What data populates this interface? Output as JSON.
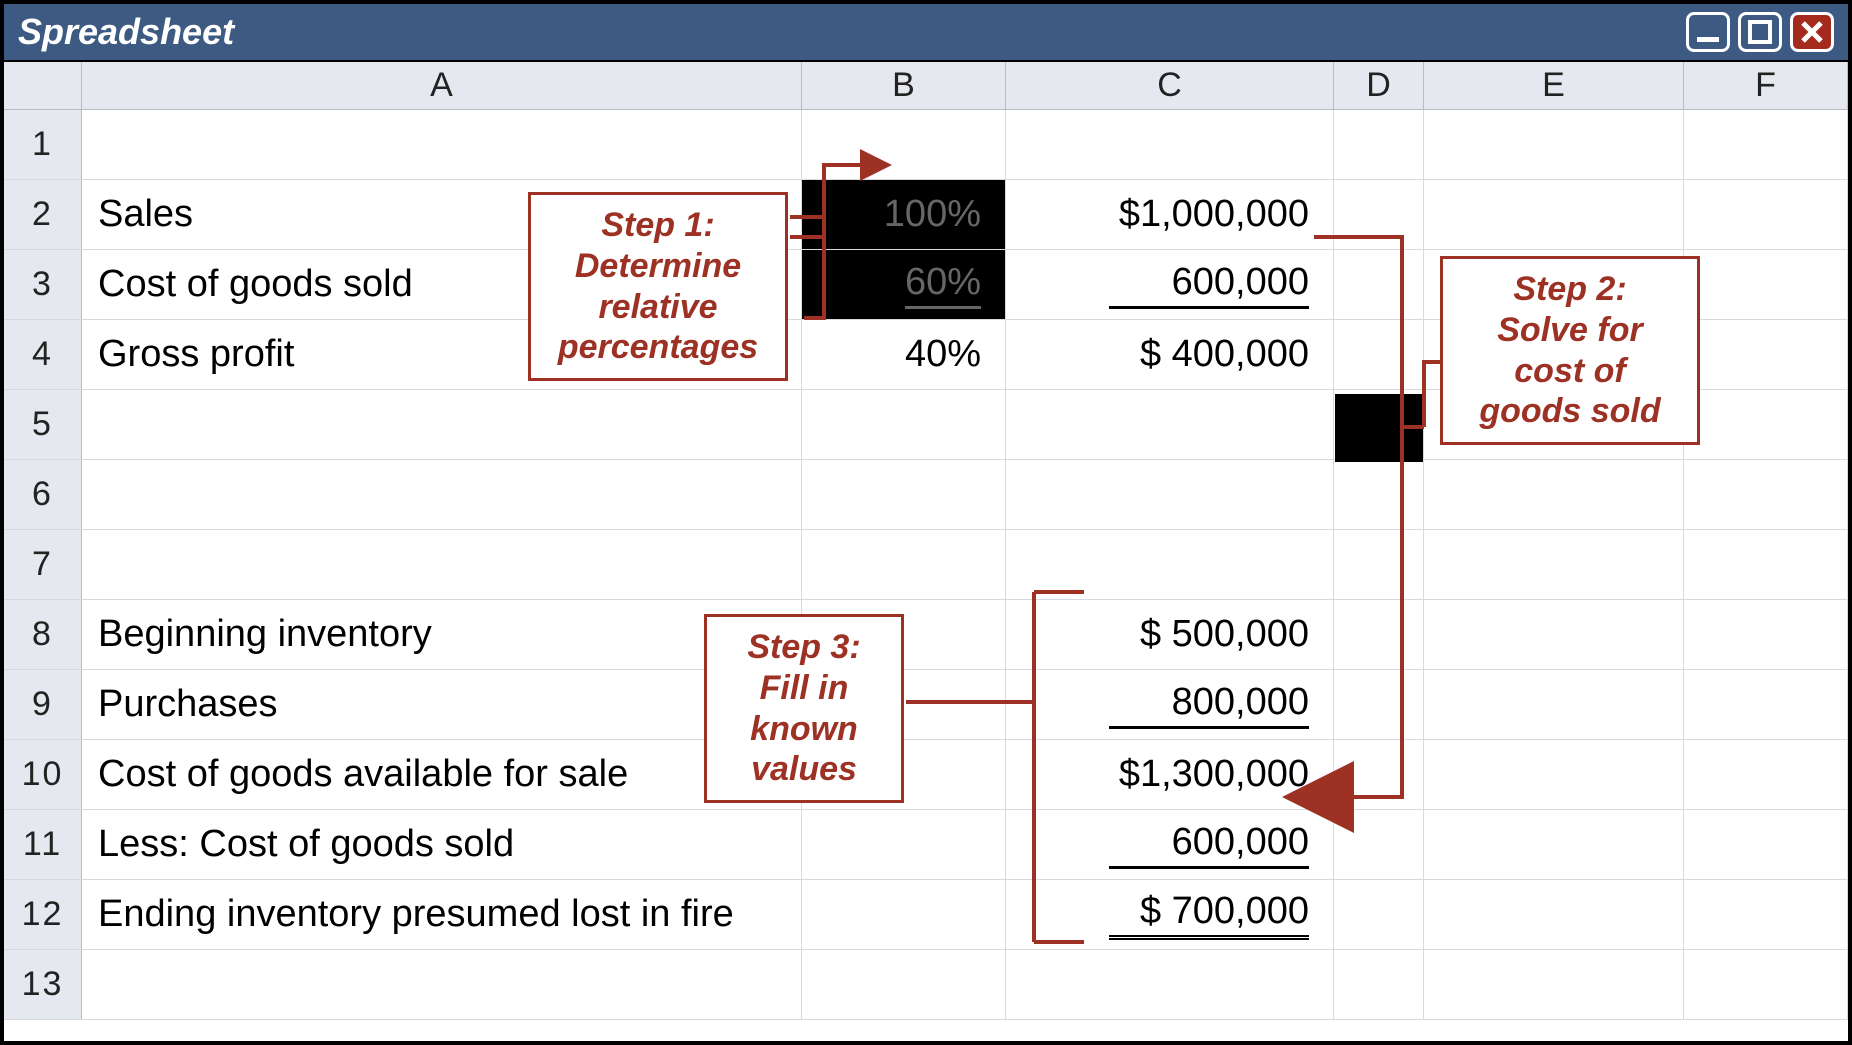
{
  "window": {
    "title": "Spreadsheet"
  },
  "columns": {
    "widths": {
      "rowHeader": 78,
      "A": 720,
      "B": 204,
      "C": 328,
      "D": 90,
      "E": 260,
      "F": 164
    },
    "labels": {
      "A": "A",
      "B": "B",
      "C": "C",
      "D": "D",
      "E": "E",
      "F": "F"
    }
  },
  "rows": {
    "labels": [
      "1",
      "2",
      "3",
      "4",
      "5",
      "6",
      "7",
      "8",
      "9",
      "10",
      "11",
      "12",
      "13"
    ],
    "height": 70
  },
  "cells": {
    "A2": "Sales",
    "A3": "Cost of goods sold",
    "A4": "Gross profit",
    "A8": "Beginning inventory",
    "A9": "Purchases",
    "A10": "Cost of goods available for sale",
    "A11": "Less: Cost of goods sold",
    "A12": "Ending inventory presumed lost in fire",
    "B2": "100%",
    "B3": "60%",
    "B4": "40%",
    "C2": "$1,000,000",
    "C3": "600,000",
    "C4": "$   400,000",
    "C8": "$   500,000",
    "C9": "800,000",
    "C10": "$1,300,000",
    "C11": "600,000",
    "C12": "$   700,000"
  },
  "callouts": {
    "step1": "Step 1:\nDetermine\nrelative\npercentages",
    "step2": "Step 2:\nSolve for\ncost of\ngoods sold",
    "step3": "Step 3:\nFill in\nknown\nvalues"
  },
  "colors": {
    "titleBar": "#3d5a82",
    "callout": "#9c3124",
    "headerFill": "#e6e8ef",
    "gridLine": "#d7d9df",
    "closeBtn": "#a32a1c"
  }
}
